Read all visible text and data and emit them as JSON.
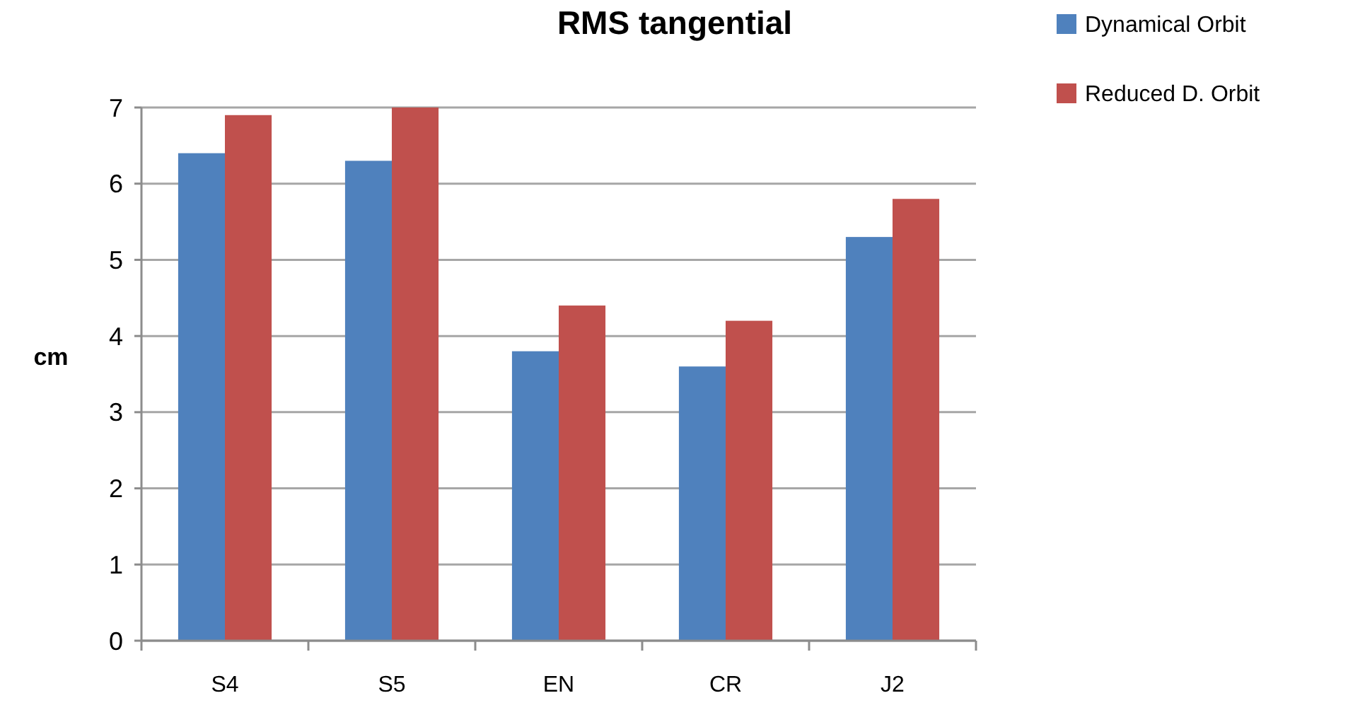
{
  "chart_data": {
    "type": "bar",
    "title": "RMS tangential",
    "ylabel": "cm",
    "categories": [
      "S4",
      "S5",
      "EN",
      "CR",
      "J2"
    ],
    "series": [
      {
        "name": "Dynamical Orbit",
        "color": "#4f81bd",
        "values": [
          6.4,
          6.3,
          3.8,
          3.6,
          5.3
        ]
      },
      {
        "name": "Reduced D. Orbit",
        "color": "#c0504d",
        "values": [
          6.9,
          7.0,
          4.4,
          4.2,
          5.8
        ]
      }
    ],
    "ylim": [
      0,
      7
    ],
    "yticks": [
      0,
      1,
      2,
      3,
      4,
      5,
      6,
      7
    ],
    "grid": "y",
    "legend": "top right"
  }
}
